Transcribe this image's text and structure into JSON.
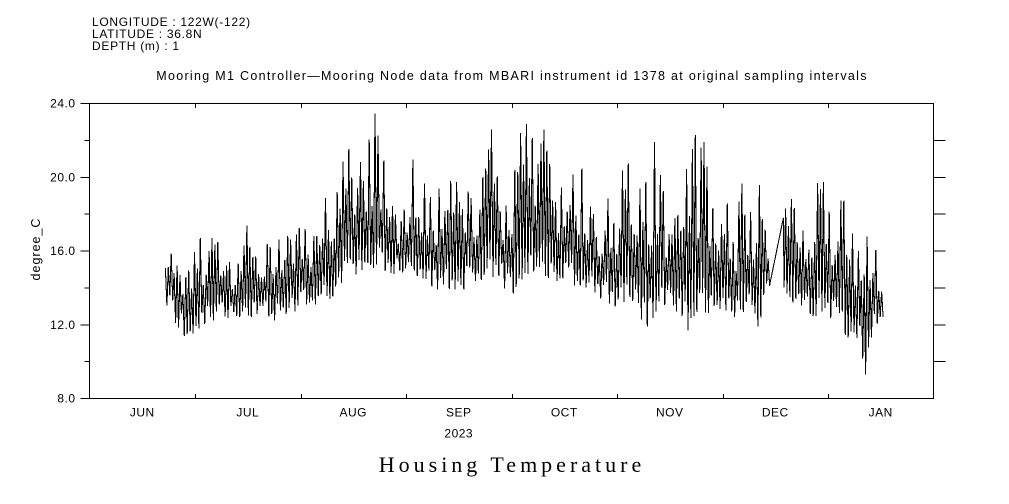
{
  "header": {
    "lines": [
      "LONGITUDE : 122W(-122)",
      "LATITUDE : 36.8N",
      "DEPTH (m) : 1"
    ]
  },
  "title": "Mooring M1 Controller—Mooring Node data from MBARI instrument id 1378 at original sampling intervals",
  "footer_title": "Housing Temperature",
  "chart_data": {
    "type": "line",
    "title": "Mooring M1 Controller—Mooring Node data from MBARI instrument id 1378 at original sampling intervals",
    "series_name": "Housing Temperature",
    "ylabel": "degree_C",
    "year_label": "2023",
    "ylim": [
      8,
      24
    ],
    "yticks": [
      {
        "v": 24,
        "label": "24.0"
      },
      {
        "v": 20,
        "label": "20.0"
      },
      {
        "v": 16,
        "label": "16.0"
      },
      {
        "v": 12,
        "label": "12.0"
      },
      {
        "v": 8,
        "label": "8.0"
      }
    ],
    "yticks_minor": [
      22,
      18,
      14,
      10
    ],
    "right_ticks": [
      10,
      12,
      14,
      16,
      18,
      20,
      22
    ],
    "xticks": [
      "JUN",
      "JUL",
      "AUG",
      "SEP",
      "OCT",
      "NOV",
      "DEC",
      "JAN"
    ],
    "start_day": 21.9,
    "end_day": 229.0,
    "gap": {
      "start_day": 196.4,
      "end_day": 200.2,
      "start_value": 14.3,
      "end_value": 17.8
    },
    "anchors_high": [
      [
        82.2,
        23.45
      ],
      [
        116.0,
        22.6
      ],
      [
        124.3,
        22.4
      ],
      [
        126.3,
        22.9
      ],
      [
        130.9,
        22.6
      ],
      [
        163.2,
        21.9
      ],
      [
        174.8,
        22.3
      ],
      [
        177.1,
        21.9
      ],
      [
        194.4,
        21.2
      ]
    ],
    "anchors_low": [
      [
        27.4,
        11.4
      ],
      [
        160.9,
        11.9
      ],
      [
        172.5,
        11.7
      ],
      [
        192.7,
        11.9
      ],
      [
        223.8,
        9.3
      ]
    ],
    "envelope_fields": [
      "day_since_jun1",
      "low",
      "center",
      "high"
    ],
    "envelope": [
      [
        21.9,
        13.0,
        14.8,
        16.4
      ],
      [
        24.5,
        12.2,
        14.0,
        15.6
      ],
      [
        27.4,
        11.4,
        13.2,
        14.6
      ],
      [
        29.7,
        11.5,
        13.4,
        15.3
      ],
      [
        31.2,
        11.7,
        13.8,
        17.4
      ],
      [
        33.2,
        11.8,
        13.6,
        15.6
      ],
      [
        35.8,
        12.3,
        14.0,
        16.9
      ],
      [
        38.1,
        12.4,
        14.0,
        16.1
      ],
      [
        41.0,
        12.3,
        13.7,
        15.2
      ],
      [
        43.8,
        12.5,
        13.8,
        15.3
      ],
      [
        45.6,
        12.3,
        14.0,
        17.9
      ],
      [
        48.2,
        12.5,
        14.0,
        15.6
      ],
      [
        50.8,
        12.2,
        14.1,
        16.6
      ],
      [
        53.6,
        12.1,
        14.0,
        16.2
      ],
      [
        56.0,
        12.6,
        14.3,
        17.4
      ],
      [
        58.8,
        12.7,
        14.4,
        16.5
      ],
      [
        61.1,
        13.0,
        14.8,
        17.6
      ],
      [
        64.0,
        13.1,
        14.6,
        16.5
      ],
      [
        66.3,
        12.9,
        14.8,
        17.2
      ],
      [
        68.6,
        13.2,
        15.2,
        19.4
      ],
      [
        71.0,
        13.7,
        15.5,
        18.8
      ],
      [
        73.3,
        14.2,
        16.0,
        20.9
      ],
      [
        75.6,
        14.6,
        16.4,
        22.1
      ],
      [
        77.9,
        14.9,
        16.6,
        21.0
      ],
      [
        80.2,
        15.0,
        16.8,
        21.8
      ],
      [
        82.2,
        15.2,
        17.0,
        23.4
      ],
      [
        84.2,
        15.0,
        16.8,
        21.6
      ],
      [
        86.5,
        14.9,
        16.5,
        19.9
      ],
      [
        88.8,
        14.8,
        16.0,
        17.6
      ],
      [
        91.1,
        14.7,
        15.8,
        18.3
      ],
      [
        92.9,
        14.8,
        16.1,
        21.3
      ],
      [
        95.2,
        14.6,
        16.0,
        20.1
      ],
      [
        97.5,
        14.3,
        15.7,
        19.5
      ],
      [
        99.8,
        14.0,
        15.4,
        18.5
      ],
      [
        102.7,
        14.1,
        15.8,
        21.3
      ],
      [
        105.0,
        13.9,
        15.5,
        19.2
      ],
      [
        107.3,
        13.8,
        15.6,
        20.8
      ],
      [
        109.6,
        14.2,
        15.7,
        19.0
      ],
      [
        111.9,
        14.5,
        16.0,
        19.6
      ],
      [
        114.2,
        14.6,
        16.2,
        20.5
      ],
      [
        116.0,
        14.7,
        16.4,
        22.6
      ],
      [
        118.3,
        14.3,
        16.0,
        19.5
      ],
      [
        120.6,
        13.7,
        15.5,
        18.5
      ],
      [
        122.3,
        13.6,
        15.5,
        20.0
      ],
      [
        124.3,
        14.2,
        16.0,
        22.4
      ],
      [
        126.3,
        14.6,
        16.4,
        22.9
      ],
      [
        128.6,
        14.8,
        16.6,
        22.2
      ],
      [
        130.9,
        14.6,
        16.4,
        22.6
      ],
      [
        133.3,
        14.4,
        16.1,
        20.2
      ],
      [
        135.6,
        14.5,
        16.0,
        18.9
      ],
      [
        137.9,
        14.4,
        16.0,
        21.4
      ],
      [
        140.2,
        14.2,
        15.8,
        19.8
      ],
      [
        142.5,
        14.0,
        15.7,
        20.8
      ],
      [
        144.8,
        13.8,
        15.3,
        18.4
      ],
      [
        147.1,
        13.4,
        14.9,
        17.8
      ],
      [
        149.4,
        13.2,
        14.8,
        18.9
      ],
      [
        151.7,
        13.0,
        14.5,
        17.3
      ],
      [
        154.0,
        13.2,
        14.9,
        20.6
      ],
      [
        156.3,
        13.4,
        15.0,
        21.0
      ],
      [
        158.6,
        12.6,
        14.5,
        19.2
      ],
      [
        160.9,
        11.9,
        14.2,
        19.8
      ],
      [
        163.2,
        12.5,
        14.8,
        21.9
      ],
      [
        165.5,
        12.8,
        14.6,
        19.2
      ],
      [
        167.9,
        13.0,
        14.4,
        17.3
      ],
      [
        170.2,
        12.6,
        14.3,
        18.5
      ],
      [
        172.5,
        11.7,
        14.4,
        20.9
      ],
      [
        174.8,
        12.4,
        14.8,
        22.3
      ],
      [
        177.1,
        12.6,
        14.9,
        21.9
      ],
      [
        179.4,
        12.7,
        14.6,
        19.5
      ],
      [
        181.7,
        12.8,
        14.2,
        16.8
      ],
      [
        184.0,
        12.6,
        14.2,
        18.8
      ],
      [
        186.3,
        12.4,
        14.0,
        17.4
      ],
      [
        188.6,
        12.6,
        14.3,
        20.3
      ],
      [
        190.9,
        13.2,
        14.6,
        18.3
      ],
      [
        192.7,
        11.9,
        14.4,
        19.0
      ],
      [
        194.4,
        12.8,
        14.9,
        21.2
      ],
      [
        196.1,
        13.6,
        14.6,
        17.0
      ],
      [
        200.2,
        14.0,
        15.5,
        18.0
      ],
      [
        201.9,
        13.4,
        15.2,
        19.5
      ],
      [
        204.2,
        13.2,
        14.8,
        17.6
      ],
      [
        206.5,
        13.0,
        14.5,
        16.8
      ],
      [
        208.8,
        12.3,
        14.4,
        18.8
      ],
      [
        211.1,
        12.6,
        14.6,
        20.4
      ],
      [
        213.4,
        12.4,
        14.2,
        18.4
      ],
      [
        215.8,
        12.0,
        13.8,
        17.8
      ],
      [
        217.5,
        11.5,
        13.8,
        19.9
      ],
      [
        219.8,
        10.8,
        13.2,
        17.0
      ],
      [
        221.5,
        11.2,
        13.0,
        16.2
      ],
      [
        223.8,
        9.3,
        12.8,
        16.9
      ],
      [
        225.6,
        11.3,
        13.2,
        17.0
      ],
      [
        227.3,
        11.9,
        13.4,
        15.9
      ],
      [
        229.0,
        12.5,
        13.2,
        14.0
      ]
    ]
  }
}
